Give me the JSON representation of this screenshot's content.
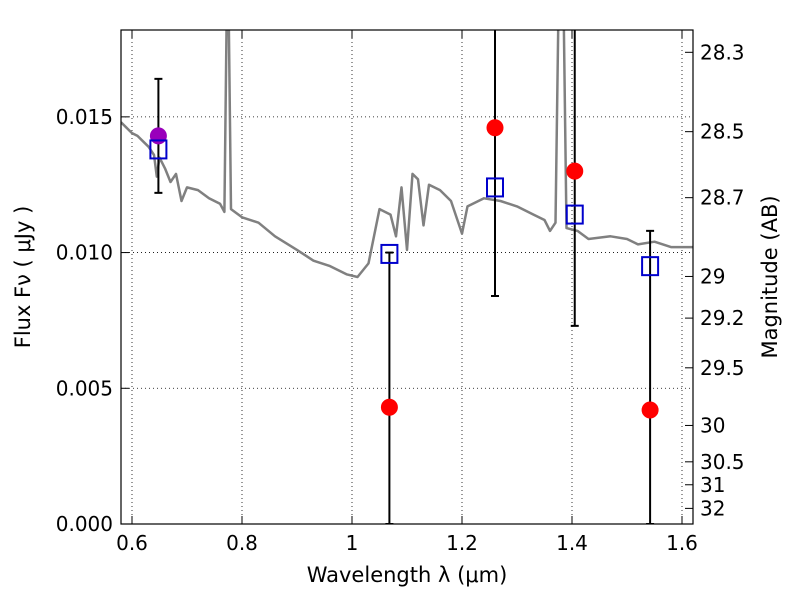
{
  "chart_data": {
    "type": "scatter",
    "xlabel": "Wavelength  λ (μm)",
    "ylabel_left": "Flux  Fν  ( μJy )",
    "ylabel_right": "Magnitude (AB)",
    "xlim": [
      0.58,
      1.62
    ],
    "ylim": [
      0.0,
      0.0182
    ],
    "grid": true,
    "x_ticks": [
      {
        "value": 0.6,
        "label": "0.6"
      },
      {
        "value": 0.8,
        "label": "0.8"
      },
      {
        "value": 1.0,
        "label": "1"
      },
      {
        "value": 1.2,
        "label": "1.2"
      },
      {
        "value": 1.4,
        "label": "1.4"
      },
      {
        "value": 1.6,
        "label": "1.6"
      }
    ],
    "y_ticks": [
      {
        "value": 0.0,
        "label": "0.000"
      },
      {
        "value": 0.005,
        "label": "0.005"
      },
      {
        "value": 0.01,
        "label": "0.010"
      },
      {
        "value": 0.015,
        "label": "0.015"
      }
    ],
    "right_axis_ticks": [
      {
        "mag": 28.3,
        "label": "28.3"
      },
      {
        "mag": 28.5,
        "label": "28.5"
      },
      {
        "mag": 28.7,
        "label": "28.7"
      },
      {
        "mag": 29,
        "label": "29"
      },
      {
        "mag": 29.2,
        "label": "29.2"
      },
      {
        "mag": 29.5,
        "label": "29.5"
      },
      {
        "mag": 30,
        "label": "30"
      },
      {
        "mag": 30.5,
        "label": "30.5"
      },
      {
        "mag": 31,
        "label": "31"
      },
      {
        "mag": 32,
        "label": "32"
      }
    ],
    "series": [
      {
        "kind": "line",
        "color": "#808080",
        "points": [
          [
            0.58,
            0.0148
          ],
          [
            0.59,
            0.0146
          ],
          [
            0.6,
            0.0144
          ],
          [
            0.61,
            0.0143
          ],
          [
            0.62,
            0.0141
          ],
          [
            0.63,
            0.0139
          ],
          [
            0.64,
            0.0136
          ],
          [
            0.645,
            0.0128
          ],
          [
            0.65,
            0.0135
          ],
          [
            0.66,
            0.0131
          ],
          [
            0.67,
            0.0126
          ],
          [
            0.68,
            0.0129
          ],
          [
            0.69,
            0.0119
          ],
          [
            0.7,
            0.0124
          ],
          [
            0.72,
            0.0123
          ],
          [
            0.74,
            0.012
          ],
          [
            0.76,
            0.0118
          ],
          [
            0.768,
            0.0115
          ],
          [
            0.772,
            0.0185
          ],
          [
            0.776,
            0.0185
          ],
          [
            0.78,
            0.0116
          ],
          [
            0.8,
            0.0113
          ],
          [
            0.83,
            0.0111
          ],
          [
            0.86,
            0.0106
          ],
          [
            0.9,
            0.0101
          ],
          [
            0.93,
            0.0097
          ],
          [
            0.96,
            0.0095
          ],
          [
            0.99,
            0.0092
          ],
          [
            1.01,
            0.0091
          ],
          [
            1.03,
            0.0096
          ],
          [
            1.05,
            0.0116
          ],
          [
            1.07,
            0.0114
          ],
          [
            1.08,
            0.0106
          ],
          [
            1.09,
            0.0124
          ],
          [
            1.1,
            0.0101
          ],
          [
            1.11,
            0.0129
          ],
          [
            1.12,
            0.0127
          ],
          [
            1.13,
            0.011
          ],
          [
            1.14,
            0.0125
          ],
          [
            1.16,
            0.0123
          ],
          [
            1.18,
            0.0119
          ],
          [
            1.2,
            0.0107
          ],
          [
            1.21,
            0.0117
          ],
          [
            1.24,
            0.012
          ],
          [
            1.27,
            0.0119
          ],
          [
            1.3,
            0.0117
          ],
          [
            1.33,
            0.0114
          ],
          [
            1.35,
            0.0112
          ],
          [
            1.36,
            0.0108
          ],
          [
            1.37,
            0.0111
          ],
          [
            1.375,
            0.0185
          ],
          [
            1.385,
            0.0185
          ],
          [
            1.39,
            0.0109
          ],
          [
            1.41,
            0.0108
          ],
          [
            1.43,
            0.0105
          ],
          [
            1.47,
            0.0106
          ],
          [
            1.5,
            0.0105
          ],
          [
            1.52,
            0.0103
          ],
          [
            1.55,
            0.0104
          ],
          [
            1.58,
            0.0102
          ],
          [
            1.62,
            0.0102
          ]
        ]
      },
      {
        "kind": "squares",
        "color": "#0000cc",
        "points": [
          [
            0.648,
            0.0138
          ],
          [
            1.068,
            0.00995
          ],
          [
            1.26,
            0.0124
          ],
          [
            1.405,
            0.0114
          ],
          [
            1.542,
            0.0095
          ]
        ]
      },
      {
        "kind": "circles",
        "points": [
          {
            "x": 0.648,
            "y": 0.0143,
            "color": "#9900bb"
          },
          {
            "x": 1.068,
            "y": 0.0043,
            "color": "#ff0000"
          },
          {
            "x": 1.26,
            "y": 0.0146,
            "color": "#ff0000"
          },
          {
            "x": 1.405,
            "y": 0.013,
            "color": "#ff0000"
          },
          {
            "x": 1.542,
            "y": 0.0042,
            "color": "#ff0000"
          }
        ]
      },
      {
        "kind": "errorbars",
        "color": "#000000",
        "points": [
          {
            "x": 0.648,
            "lo": 0.0122,
            "hi": 0.0164
          },
          {
            "x": 1.068,
            "lo": 0.0,
            "hi": 0.01
          },
          {
            "x": 1.26,
            "lo": 0.0084,
            "hi": 0.0185
          },
          {
            "x": 1.405,
            "lo": 0.0073,
            "hi": 0.0185
          },
          {
            "x": 1.542,
            "lo": 0.0,
            "hi": 0.0108
          }
        ]
      }
    ]
  }
}
